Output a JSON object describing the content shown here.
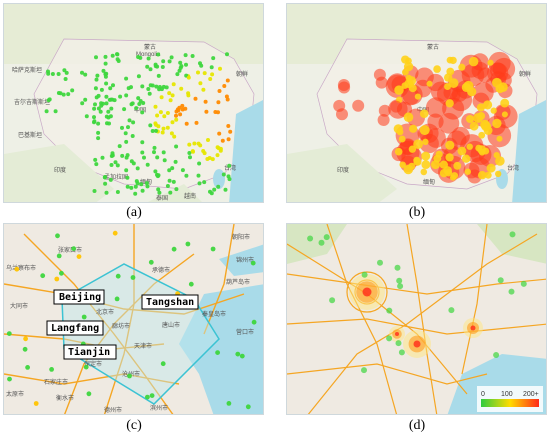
{
  "panels": [
    {
      "caption": "(a)",
      "labels": [
        {
          "text": "蒙古"
        },
        {
          "text": "Mongolia"
        },
        {
          "text": "中国"
        },
        {
          "text": "哈萨克斯坦"
        },
        {
          "text": "吉尔吉斯斯坦"
        },
        {
          "text": "巴基斯坦"
        },
        {
          "text": "印度"
        },
        {
          "text": "孟加拉国"
        },
        {
          "text": "缅甸"
        },
        {
          "text": "泰国"
        },
        {
          "text": "越南"
        },
        {
          "text": "朝鲜"
        },
        {
          "text": "台湾"
        }
      ]
    },
    {
      "caption": "(b)",
      "labels": [
        {
          "text": "蒙古"
        },
        {
          "text": "中国"
        },
        {
          "text": "印度"
        },
        {
          "text": "缅甸"
        },
        {
          "text": "台湾"
        },
        {
          "text": "朝鲜"
        }
      ]
    },
    {
      "caption": "(c)",
      "region_labels": [
        "Beijing",
        "Tangshan",
        "Langfang",
        "Tianjin"
      ],
      "city_labels": [
        "乌兰察布市",
        "张家口市",
        "承德市",
        "朝阳市",
        "锦州市",
        "葫芦岛市",
        "大同市",
        "北京市",
        "廊坊市",
        "唐山市",
        "秦皇岛市",
        "保定市",
        "天津市",
        "沧州市",
        "石家庄市",
        "衡水市",
        "滨州市",
        "德州市",
        "太原市",
        "营口市"
      ]
    },
    {
      "caption": "(d)",
      "legend": {
        "ticks": [
          "0",
          "100",
          "200+"
        ]
      }
    }
  ],
  "colors": {
    "water": "#a9dbe9",
    "land": "#efeae2",
    "highway": "#f5a623",
    "box": "#3cc3d3"
  }
}
